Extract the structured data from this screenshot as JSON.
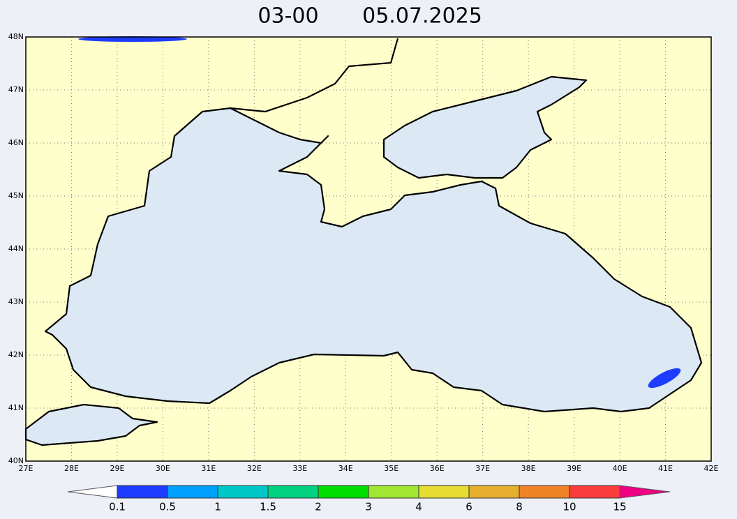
{
  "header": {
    "time": "03-00",
    "date": "05.07.2025"
  },
  "map": {
    "latitude_labels": [
      "40N",
      "41N",
      "42N",
      "43N",
      "44N",
      "45N",
      "46N",
      "47N",
      "48N"
    ],
    "longitude_labels": [
      "27E",
      "28E",
      "29E",
      "30E",
      "31E",
      "32E",
      "33E",
      "34E",
      "35E",
      "36E",
      "37E",
      "38E",
      "39E",
      "40E",
      "41E",
      "42E"
    ]
  },
  "legend": {
    "labels": [
      "0.1",
      "0.5",
      "1",
      "1.5",
      "2",
      "3",
      "4",
      "6",
      "8",
      "10",
      "15"
    ],
    "colors": [
      "#ffffff",
      "#1e3cff",
      "#00a0ff",
      "#00c8c8",
      "#00d282",
      "#00dc00",
      "#a0e632",
      "#e6dc32",
      "#e6af2d",
      "#f08228",
      "#fa3c3c",
      "#f00082"
    ]
  }
}
